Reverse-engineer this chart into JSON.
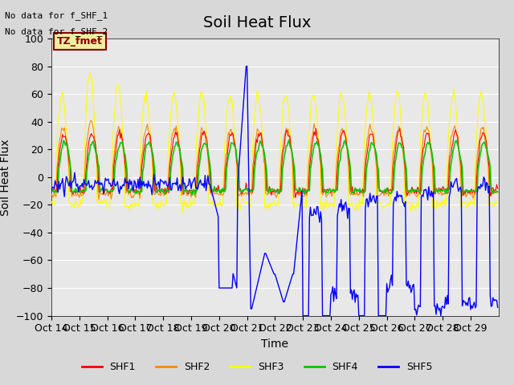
{
  "title": "Soil Heat Flux",
  "ylabel": "Soil Heat Flux",
  "xlabel": "Time",
  "annotations": [
    "No data for f_SHF_1",
    "No data for f_SHF_2"
  ],
  "legend_label": "TZ_fmet",
  "ylim": [
    -100,
    100
  ],
  "xlim": [
    0,
    480
  ],
  "xtick_labels": [
    "Oct 14",
    "Oct 15",
    "Oct 16",
    "Oct 17",
    "Oct 18",
    "Oct 19",
    "Oct 20",
    "Oct 21",
    "Oct 22",
    "Oct 23",
    "Oct 24",
    "Oct 25",
    "Oct 26",
    "Oct 27",
    "Oct 28",
    "Oct 29"
  ],
  "colors": {
    "SHF1": "#ff0000",
    "SHF2": "#ff8800",
    "SHF3": "#ffff00",
    "SHF4": "#00cc00",
    "SHF5": "#0000ff"
  },
  "background_color": "#e8e8e8",
  "plot_background": "#e8e8e8",
  "grid_color": "#ffffff",
  "title_fontsize": 14,
  "axis_fontsize": 10,
  "tick_fontsize": 9
}
